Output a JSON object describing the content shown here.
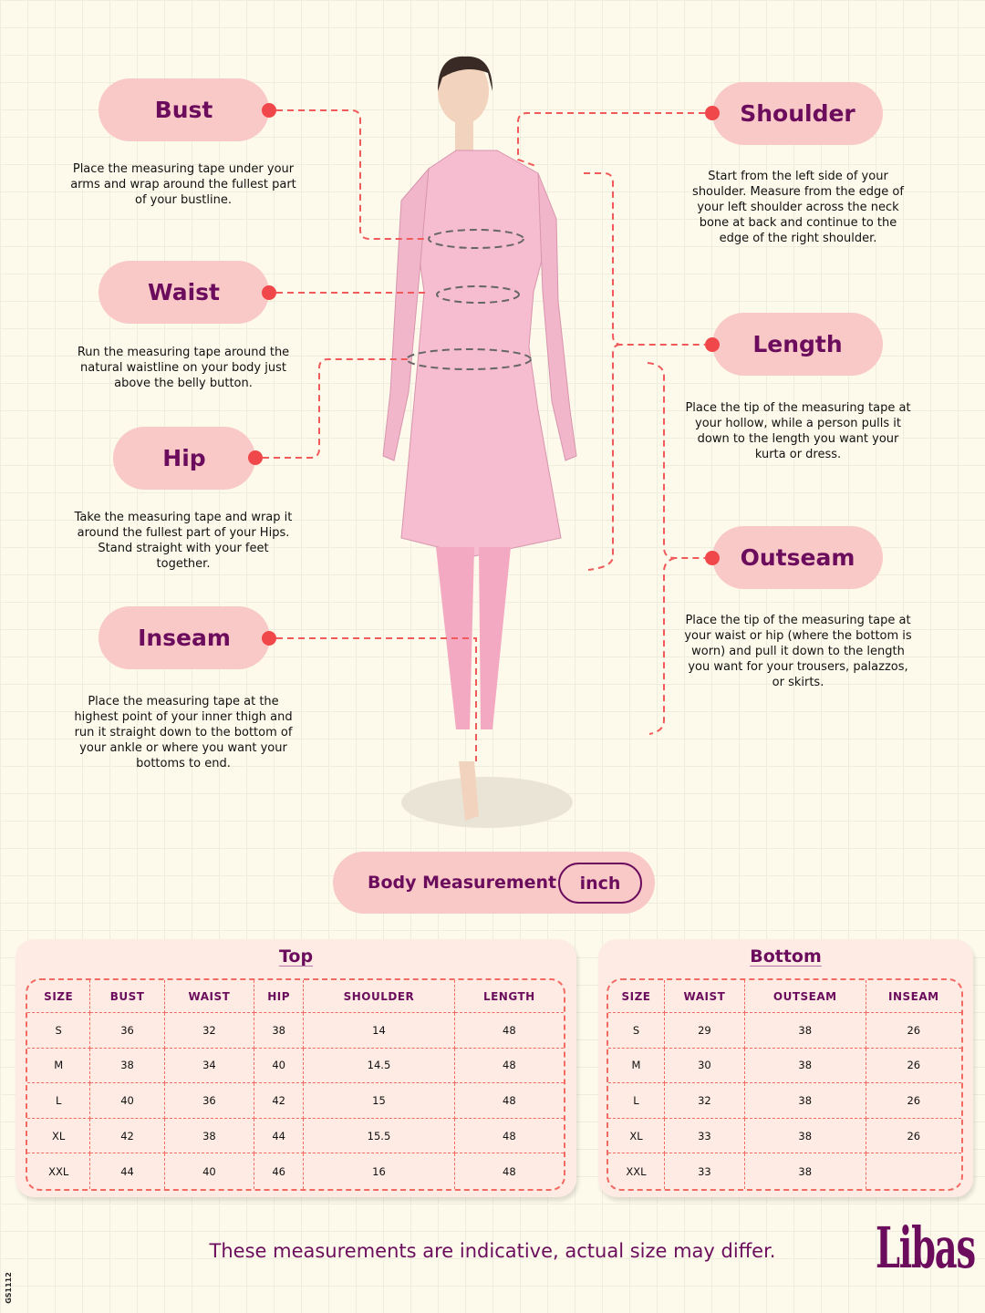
{
  "measurements": {
    "bust": {
      "label": "Bust",
      "desc": "Place the measuring tape under your arms and wrap around the fullest part of your bustline."
    },
    "waist": {
      "label": "Waist",
      "desc": "Run the measuring tape around the natural waistline on your body just above the belly button."
    },
    "hip": {
      "label": "Hip",
      "desc": "Take the measuring tape and wrap it around the fullest part of your Hips. Stand straight with your feet together."
    },
    "inseam": {
      "label": "Inseam",
      "desc": "Place the measuring tape at the highest point of your inner thigh and run it straight down to the bottom of your ankle or where you want your bottoms to end."
    },
    "shoulder": {
      "label": "Shoulder",
      "desc": "Start from the left side of your shoulder. Measure from the edge of your left shoulder across the neck bone at back and continue to the edge of the right shoulder."
    },
    "length": {
      "label": "Length",
      "desc": "Place the tip of the measuring tape at your hollow, while a person pulls it down to the length you want your kurta or dress."
    },
    "outseam": {
      "label": "Outseam",
      "desc": "Place the tip of the measuring tape at your waist or hip (where the bottom is worn) and pull it down to the length you want for your trousers, palazzos, or skirts."
    }
  },
  "body_measurement": {
    "label": "Body Measurement",
    "unit": "inch"
  },
  "top": {
    "title": "Top",
    "headers": [
      "SIZE",
      "BUST",
      "WAIST",
      "HIP",
      "SHOULDER",
      "LENGTH"
    ],
    "rows": [
      [
        "S",
        "36",
        "32",
        "38",
        "14",
        "48"
      ],
      [
        "M",
        "38",
        "34",
        "40",
        "14.5",
        "48"
      ],
      [
        "L",
        "40",
        "36",
        "42",
        "15",
        "48"
      ],
      [
        "XL",
        "42",
        "38",
        "44",
        "15.5",
        "48"
      ],
      [
        "XXL",
        "44",
        "40",
        "46",
        "16",
        "48"
      ]
    ]
  },
  "bottom": {
    "title": "Bottom",
    "headers": [
      "SIZE",
      "WAIST",
      "OUTSEAM",
      "INSEAM"
    ],
    "rows": [
      [
        "S",
        "29",
        "38",
        "26"
      ],
      [
        "M",
        "30",
        "38",
        "26"
      ],
      [
        "L",
        "32",
        "38",
        "26"
      ],
      [
        "XL",
        "33",
        "38",
        "26"
      ],
      [
        "XXL",
        "33",
        "38",
        ""
      ]
    ]
  },
  "footer": {
    "note": "These measurements are indicative, actual size may differ.",
    "brand": "Libas",
    "code": "GS1112"
  },
  "colors": {
    "accent": "#6b0d5c",
    "pill": "#f9c9c8",
    "dot": "#f0474a",
    "dash": "#f36a63"
  }
}
